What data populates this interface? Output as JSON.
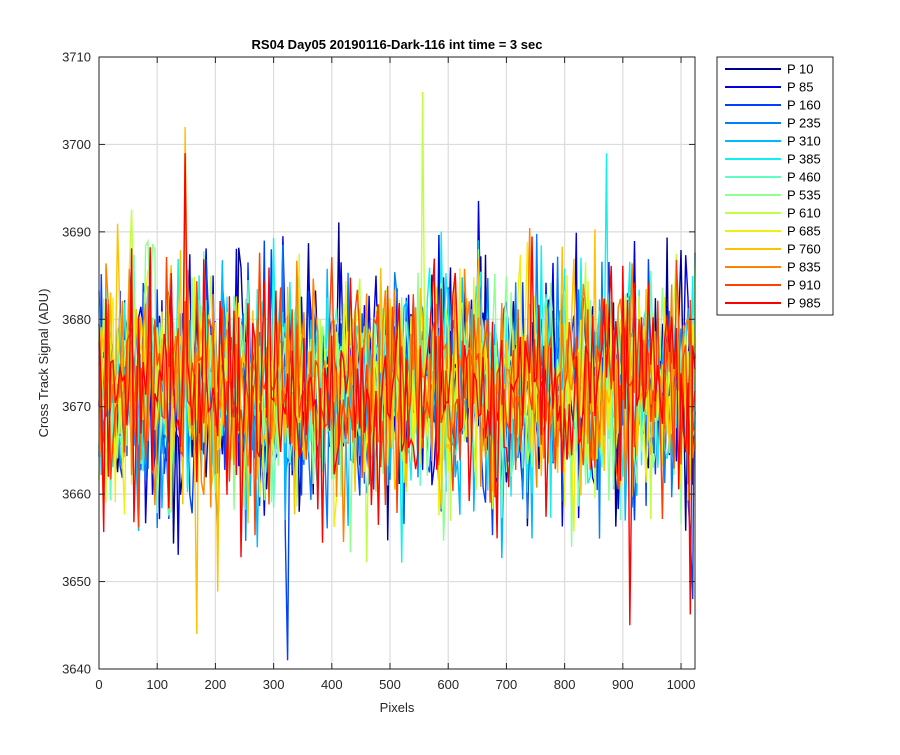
{
  "chart_data": {
    "type": "line",
    "title": "RS04 Day05 20190116-Dark-116 int time = 3 sec",
    "xlabel": "Pixels",
    "ylabel": "Cross Track Signal (ADU)",
    "xlim": [
      0,
      1024
    ],
    "ylim": [
      3640,
      3710
    ],
    "xticks": [
      0,
      100,
      200,
      300,
      400,
      500,
      600,
      700,
      800,
      900,
      1000
    ],
    "yticks": [
      3640,
      3650,
      3660,
      3670,
      3680,
      3690,
      3700,
      3710
    ],
    "grid": true,
    "legend_position": "outside-right",
    "x_step": 4,
    "series": [
      {
        "name": "P 10",
        "color": "#00008f",
        "mean": 3672,
        "sd": 7.0,
        "seed": 11
      },
      {
        "name": "P 85",
        "color": "#0000e0",
        "mean": 3672,
        "sd": 7.0,
        "seed": 23
      },
      {
        "name": "P 160",
        "color": "#0040ff",
        "mean": 3672,
        "sd": 7.0,
        "seed": 37
      },
      {
        "name": "P 235",
        "color": "#0080ff",
        "mean": 3672,
        "sd": 6.8,
        "seed": 41
      },
      {
        "name": "P 310",
        "color": "#00b8ff",
        "mean": 3672,
        "sd": 6.8,
        "seed": 53
      },
      {
        "name": "P 385",
        "color": "#10f0f0",
        "mean": 3672,
        "sd": 6.8,
        "seed": 67
      },
      {
        "name": "P 460",
        "color": "#60ffc0",
        "mean": 3672,
        "sd": 6.7,
        "seed": 71
      },
      {
        "name": "P 535",
        "color": "#90ff90",
        "mean": 3672,
        "sd": 6.7,
        "seed": 83
      },
      {
        "name": "P 610",
        "color": "#c0ff40",
        "mean": 3672,
        "sd": 6.7,
        "seed": 97
      },
      {
        "name": "P 685",
        "color": "#f0f010",
        "mean": 3672,
        "sd": 6.6,
        "seed": 101
      },
      {
        "name": "P 760",
        "color": "#ffc000",
        "mean": 3672,
        "sd": 6.6,
        "seed": 113
      },
      {
        "name": "P 835",
        "color": "#ff8000",
        "mean": 3672,
        "sd": 6.5,
        "seed": 127
      },
      {
        "name": "P 910",
        "color": "#ff4000",
        "mean": 3672,
        "sd": 6.4,
        "seed": 131
      },
      {
        "name": "P 985",
        "color": "#ff0000",
        "mean": 3672,
        "sd": 6.3,
        "seed": 139
      }
    ],
    "annotations": [
      {
        "series": "P 610",
        "x": 556,
        "y": 3706
      },
      {
        "series": "P 760",
        "x": 148,
        "y": 3702
      },
      {
        "series": "P 760",
        "x": 168,
        "y": 3644
      },
      {
        "series": "P 160",
        "x": 324,
        "y": 3641
      },
      {
        "series": "P 985",
        "x": 912,
        "y": 3645
      },
      {
        "series": "P 985",
        "x": 148,
        "y": 3699
      },
      {
        "series": "P 385",
        "x": 870,
        "y": 3699
      },
      {
        "series": "P 160",
        "x": 1020,
        "y": 3648
      }
    ]
  }
}
